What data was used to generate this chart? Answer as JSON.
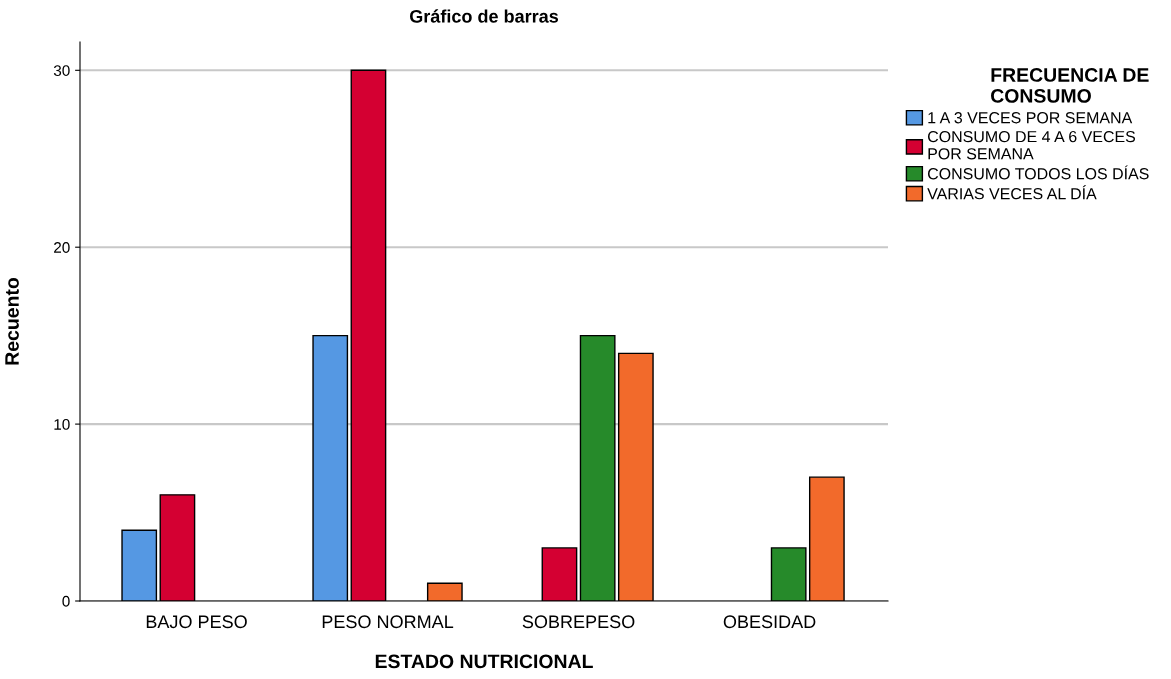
{
  "chart_data": {
    "type": "bar",
    "title": "Gráfico de barras",
    "xlabel": "ESTADO NUTRICIONAL",
    "ylabel": "Recuento",
    "legend_title": "FRECUENCIA DE\nCONSUMO",
    "categories": [
      "BAJO PESO",
      "PESO NORMAL",
      "SOBREPESO",
      "OBESIDAD"
    ],
    "series": [
      {
        "name": "1 A 3 VECES POR SEMANA",
        "color": "#5598e3",
        "values": [
          4,
          15,
          null,
          null
        ]
      },
      {
        "name": "CONSUMO DE 4 A 6 VECES\nPOR SEMANA",
        "color": "#d40032",
        "values": [
          6,
          30,
          3,
          null
        ]
      },
      {
        "name": "CONSUMO TODOS LOS DÍAS",
        "color": "#268a2a",
        "values": [
          null,
          null,
          15,
          3
        ]
      },
      {
        "name": "VARIAS VECES AL DÍA",
        "color": "#f26a2b",
        "values": [
          null,
          1,
          14,
          7
        ]
      }
    ],
    "ylim": [
      0,
      31.6
    ],
    "yticks": [
      0,
      10,
      20,
      30
    ],
    "grid": "y",
    "legend": "right"
  }
}
